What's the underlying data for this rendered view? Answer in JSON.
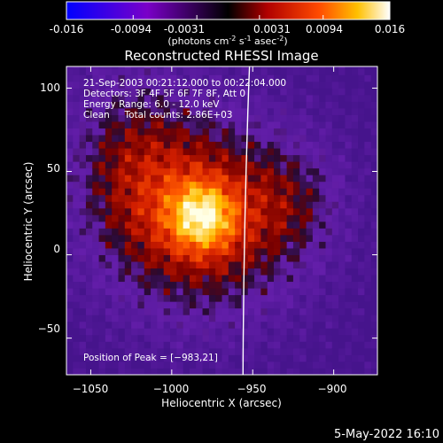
{
  "colorbar": {
    "ticks": [
      "-0.016",
      "-0.0094",
      "-0.0031",
      "0.0031",
      "0.0094",
      "0.016"
    ],
    "tick_values": [
      -0.016,
      -0.0094,
      -0.0031,
      0.0031,
      0.0094,
      0.016
    ],
    "range": [
      -0.016,
      0.016
    ],
    "unit_parts": [
      "(photons cm",
      "-2",
      " s",
      "-1",
      " asec",
      "-2",
      ")"
    ],
    "colors": {
      "low": "#0000ff",
      "mid_low": "#8000c0",
      "zero": "#000000",
      "mid_high": "#ff3000",
      "high": "#ffffff"
    }
  },
  "chart_data": {
    "type": "heatmap",
    "title": "Reconstructed RHESSI Image",
    "xlabel": "Heliocentric X (arcsec)",
    "ylabel": "Heliocentric Y (arcsec)",
    "xlim": [
      -1065,
      -873
    ],
    "ylim": [
      -72,
      113
    ],
    "xticks": [
      -1050,
      -1000,
      -950,
      -900
    ],
    "yticks": [
      -50,
      0,
      50,
      100
    ],
    "xtick_labels": [
      "−1050",
      "−1000",
      "−950",
      "−900"
    ],
    "ytick_labels": [
      "−50",
      "0",
      "50",
      "100"
    ],
    "peak": {
      "x": -983,
      "y": 21
    },
    "limb_line": {
      "x_top": -952,
      "x_bottom": -956
    },
    "annotations": [
      "21-Sep-2003 00:21:12.000 to 00:22:04.000",
      "Detectors: 3F 4F 5F 6F 7F 8F, Att 0",
      "Energy Range: 6.0 - 12.0 keV",
      "Clean     Total counts: 2.86E+03"
    ],
    "peak_label": "Position of Peak = [−983,21]"
  },
  "footer": {
    "date": "5-May-2022 16:10"
  }
}
